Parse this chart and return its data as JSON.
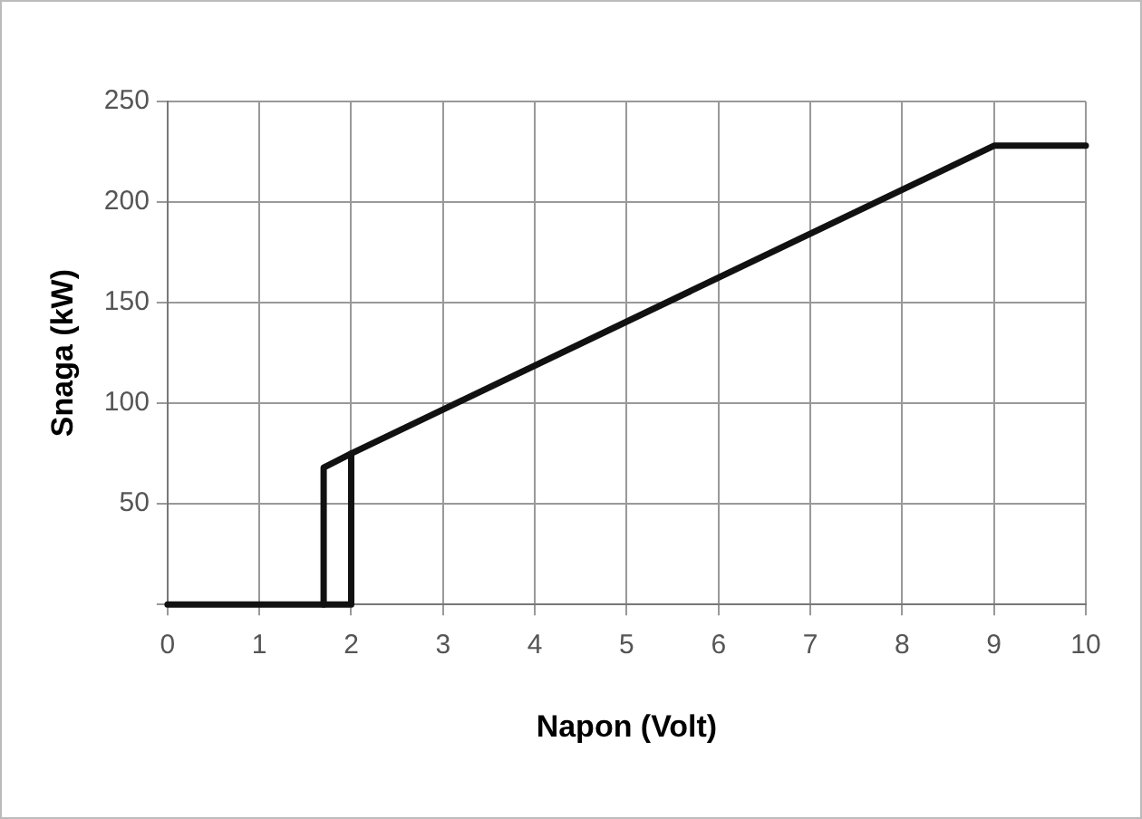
{
  "chart_data": {
    "type": "line",
    "xlabel": "Napon (Volt)",
    "ylabel": "Snaga (kW)",
    "series": [
      {
        "color": "#111111",
        "x": [
          0,
          1.7,
          1.7,
          2,
          9,
          10
        ],
        "values": [
          0,
          0,
          68,
          75,
          228,
          228
        ]
      },
      {
        "color": "#111111",
        "x": [
          1.7,
          2,
          2
        ],
        "values": [
          0,
          0,
          75
        ]
      }
    ],
    "xlim": [
      0,
      10
    ],
    "xticks": [
      0,
      1,
      2,
      3,
      4,
      5,
      6,
      7,
      8,
      9,
      10
    ],
    "ylim": [
      0,
      250
    ],
    "yticks": [
      {
        "value": 0,
        "label": null
      },
      50,
      100,
      150,
      200,
      250
    ],
    "grid": true,
    "legend": false,
    "marker": "none",
    "line_style": "solid"
  }
}
